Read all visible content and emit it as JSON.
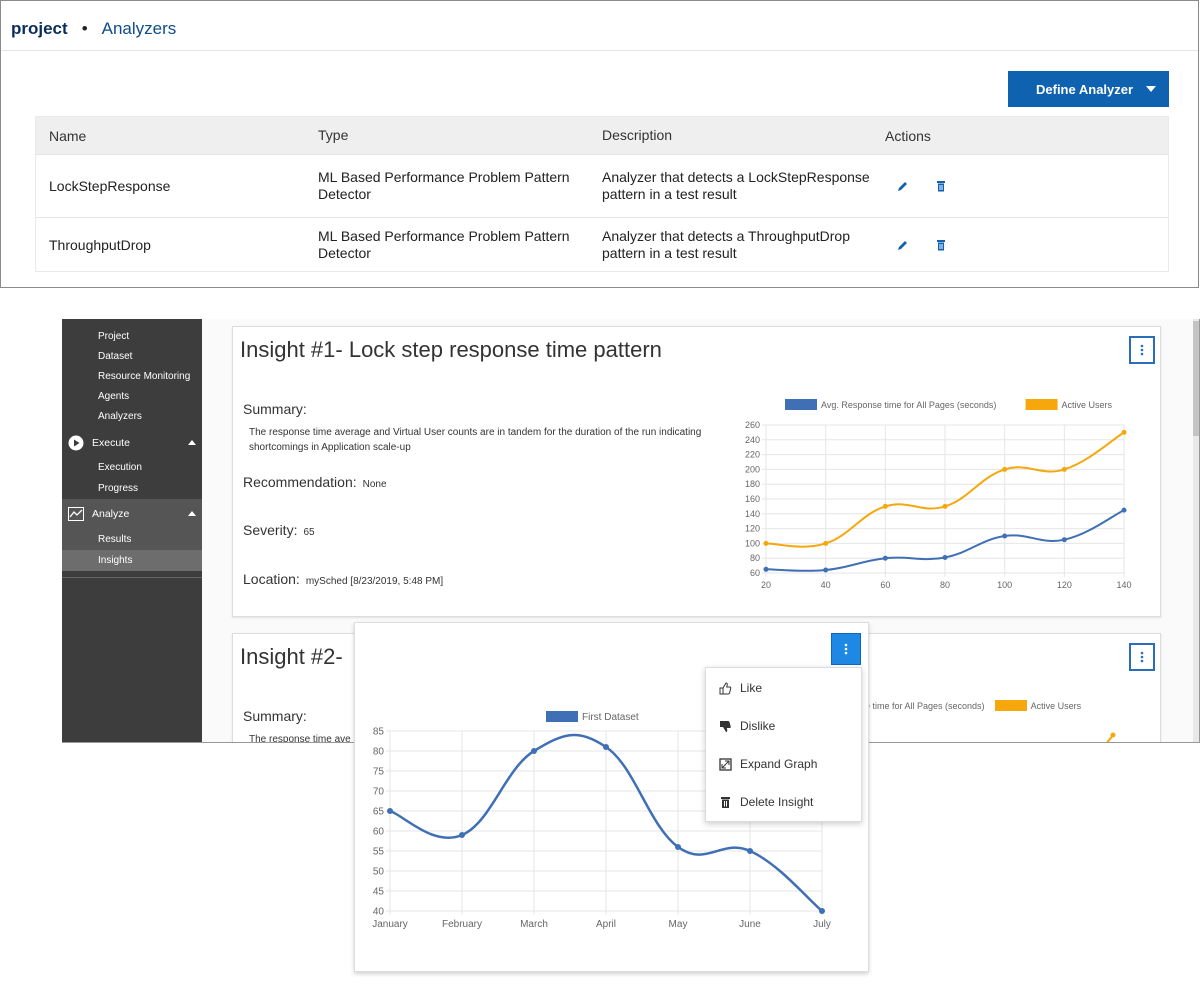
{
  "analyzers_page": {
    "breadcrumb": {
      "project": "project",
      "separator": "•",
      "current": "Analyzers"
    },
    "define_button": "Define Analyzer",
    "table": {
      "headers": {
        "name": "Name",
        "type": "Type",
        "description": "Description",
        "actions": "Actions"
      },
      "rows": [
        {
          "name": "LockStepResponse",
          "type": "ML Based Performance Problem Pattern Detector",
          "description": "Analyzer that detects a LockStepResponse pattern in a test result"
        },
        {
          "name": "ThroughputDrop",
          "type": "ML Based Performance Problem Pattern Detector",
          "description": "Analyzer that detects a ThroughputDrop pattern in a test result"
        }
      ],
      "action_icons": [
        "edit-icon",
        "delete-icon"
      ]
    }
  },
  "insights_page": {
    "sidebar": {
      "top_items": [
        "Project",
        "Dataset",
        "Resource Monitoring",
        "Agents",
        "Analyzers"
      ],
      "groups": [
        {
          "label": "Execute",
          "icon": "play-icon",
          "items": [
            "Execution",
            "Progress"
          ]
        },
        {
          "label": "Analyze",
          "icon": "chart-line-icon",
          "items": [
            "Results",
            "Insights"
          ]
        }
      ],
      "selected": "Insights"
    },
    "insight1": {
      "title": "Insight #1- Lock step response time pattern",
      "summary_label": "Summary:",
      "summary_text": "The response time average and Virtual User counts are in tandem for the duration of the run indicating shortcomings in Application scale-up",
      "recommendation_label": "Recommendation:",
      "recommendation_value": "None",
      "severity_label": "Severity:",
      "severity_value": "65",
      "location_label": "Location:",
      "location_value": "mySched [8/23/2019, 5:48 PM]"
    },
    "insight2": {
      "title": "Insight #2-",
      "summary_label": "Summary:",
      "summary_text": "The response time ave",
      "legend_partial_1": "e time for All Pages (seconds)",
      "legend_partial_2": "Active Users"
    }
  },
  "popup": {
    "menu_items": [
      {
        "label": "Like",
        "icon": "thumbs-up-icon"
      },
      {
        "label": "Dislike",
        "icon": "thumbs-down-icon"
      },
      {
        "label": "Expand Graph",
        "icon": "expand-icon"
      },
      {
        "label": "Delete Insight",
        "icon": "trash-icon"
      }
    ]
  },
  "colors": {
    "primary": "#0f62b0",
    "blue_series": "#3f6fb5",
    "orange_series": "#f5a70c",
    "sidebar_bg": "#3d3d3d"
  },
  "chart_data": [
    {
      "type": "line",
      "x": [
        20,
        40,
        60,
        80,
        100,
        120,
        140
      ],
      "series": [
        {
          "name": "Avg. Response time for All Pages (seconds)",
          "color": "#3f6fb5",
          "values": [
            65,
            64,
            80,
            81,
            110,
            105,
            145
          ]
        },
        {
          "name": "Active Users",
          "color": "#f5a70c",
          "values": [
            100,
            100,
            150,
            150,
            200,
            200,
            250
          ]
        }
      ],
      "ylim": [
        60,
        260
      ],
      "yticks": [
        60,
        80,
        100,
        120,
        140,
        160,
        180,
        200,
        220,
        240,
        260
      ],
      "grid": true,
      "legend": "top"
    },
    {
      "type": "line",
      "categories": [
        "January",
        "February",
        "March",
        "April",
        "May",
        "June",
        "July"
      ],
      "series": [
        {
          "name": "First Dataset",
          "color": "#3f6fb5",
          "values": [
            65,
            59,
            80,
            81,
            56,
            55,
            40
          ]
        }
      ],
      "ylim": [
        40,
        85
      ],
      "yticks": [
        40,
        45,
        50,
        55,
        60,
        65,
        70,
        75,
        80,
        85
      ],
      "grid": true,
      "legend": "top"
    }
  ]
}
